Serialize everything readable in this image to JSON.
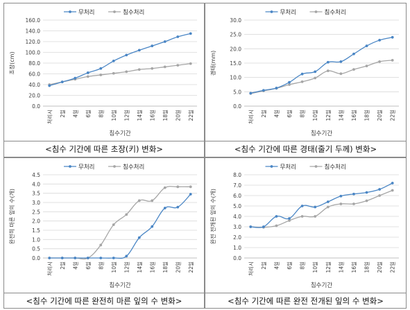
{
  "chart_data": [
    {
      "type": "line",
      "categories": [
        "처리시",
        "2일",
        "4일",
        "6일",
        "8일",
        "10일",
        "12일",
        "14일",
        "16일",
        "18일",
        "20일",
        "22일"
      ],
      "series": [
        {
          "name": "무처리",
          "color": "#4a86c5",
          "values": [
            38,
            45,
            52,
            62,
            70,
            84,
            95,
            104,
            112,
            120,
            129,
            135
          ]
        },
        {
          "name": "침수처리",
          "color": "#a6a6a6",
          "values": [
            40,
            45,
            50,
            55,
            58,
            61,
            64,
            68,
            70,
            73,
            76,
            79
          ]
        }
      ],
      "ylabel": "초장(cm)",
      "xlabel": "침수기간",
      "ylim": [
        0,
        160
      ],
      "yticks": [
        "0.0",
        "20.0",
        "40.0",
        "60.0",
        "80.0",
        "100.0",
        "120.0",
        "140.0",
        "160.0"
      ],
      "caption": "<침수 기간에 따른 초장(키) 변화>"
    },
    {
      "type": "line",
      "categories": [
        "처리시",
        "2일",
        "4일",
        "6일",
        "8일",
        "10일",
        "12일",
        "14일",
        "16일",
        "18일",
        "20일",
        "22일"
      ],
      "series": [
        {
          "name": "무처리",
          "color": "#4a86c5",
          "values": [
            4.5,
            5.5,
            6.3,
            8.3,
            11.2,
            12.0,
            15.3,
            15.5,
            18.2,
            21.0,
            23.0,
            24.0
          ]
        },
        {
          "name": "침수처리",
          "color": "#a6a6a6",
          "values": [
            4.4,
            5.3,
            6.2,
            7.5,
            8.5,
            9.8,
            12.3,
            11.3,
            12.8,
            14.0,
            15.5,
            16.0
          ]
        }
      ],
      "ylabel": "경태(mm)",
      "xlabel": "침수기간",
      "ylim": [
        0,
        30
      ],
      "yticks": [
        "0.0",
        "5.0",
        "10.0",
        "15.0",
        "20.0",
        "25.0",
        "30.0"
      ],
      "caption": "<침수 기간에 따른 경태(줄기 두께) 변화>"
    },
    {
      "type": "line",
      "categories": [
        "처리시",
        "2일",
        "4일",
        "6일",
        "8일",
        "10일",
        "12일",
        "14일",
        "16일",
        "18일",
        "20일",
        "22일"
      ],
      "series": [
        {
          "name": "무처리",
          "color": "#4a86c5",
          "values": [
            0,
            0,
            0,
            0,
            0,
            0,
            0.1,
            1.1,
            1.7,
            2.7,
            2.75,
            3.45
          ]
        },
        {
          "name": "침수처리",
          "color": "#a6a6a6",
          "values": [
            0,
            0,
            0,
            0,
            0.7,
            1.8,
            2.35,
            3.1,
            3.1,
            3.8,
            3.85,
            3.85
          ]
        }
      ],
      "ylabel": "완전히 마른 잎의 수(개)",
      "xlabel": "침수기간",
      "ylim": [
        0,
        4.5
      ],
      "yticks": [
        "0.0",
        "0.5",
        "1.0",
        "1.5",
        "2.0",
        "2.5",
        "3.0",
        "3.5",
        "4.0",
        "4.5"
      ],
      "caption": "<침수 기간에 따른 완전히 마른 잎의 수 변화>"
    },
    {
      "type": "line",
      "categories": [
        "처리시",
        "2일",
        "4일",
        "6일",
        "8일",
        "10일",
        "12일",
        "14일",
        "16일",
        "18일",
        "20일",
        "22일"
      ],
      "series": [
        {
          "name": "무처리",
          "color": "#4a86c5",
          "values": [
            3.0,
            3.0,
            4.0,
            3.8,
            5.0,
            4.9,
            5.4,
            5.95,
            6.15,
            6.3,
            6.6,
            7.2
          ]
        },
        {
          "name": "침수처리",
          "color": "#a6a6a6",
          "values": [
            3.0,
            2.95,
            3.1,
            3.6,
            4.0,
            4.0,
            4.9,
            5.2,
            5.2,
            5.5,
            6.0,
            6.5
          ]
        }
      ],
      "ylabel": "완전 전개된 잎의 수(개)",
      "xlabel": "침수기간",
      "ylim": [
        0,
        8
      ],
      "yticks": [
        "0.0",
        "1.0",
        "2.0",
        "3.0",
        "4.0",
        "5.0",
        "6.0",
        "7.0",
        "8.0"
      ],
      "caption": "<침수 기간에 따른 완전 전개된 잎의 수 변화>"
    }
  ]
}
